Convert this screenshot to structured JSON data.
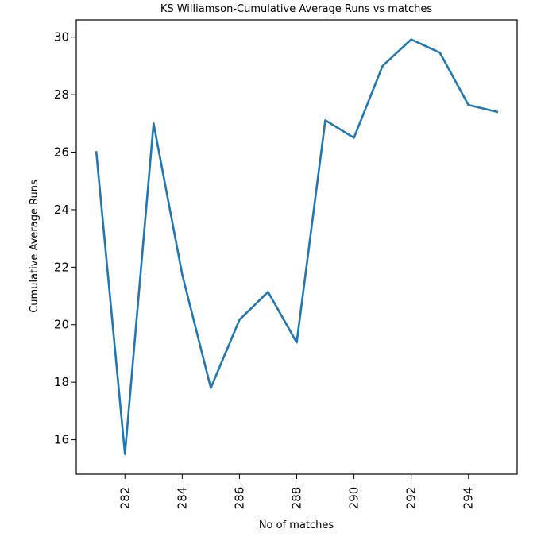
{
  "chart_data": {
    "type": "line",
    "title": "KS Williamson-Cumulative Average Runs vs matches",
    "xlabel": "No of matches",
    "ylabel": "Cumulative Average Runs",
    "xlim": [
      280.3,
      295.7
    ],
    "ylim": [
      14.8,
      30.6
    ],
    "xticks": [
      282,
      284,
      286,
      288,
      290,
      292,
      294
    ],
    "yticks": [
      16,
      18,
      20,
      22,
      24,
      26,
      28,
      30
    ],
    "grid": false,
    "series": [
      {
        "color": "#1f77b4",
        "x": [
          281,
          282,
          283,
          284,
          285,
          286,
          287,
          288,
          289,
          290,
          291,
          292,
          293,
          294,
          295
        ],
        "y": [
          26.0,
          15.5,
          27.0,
          21.75,
          17.8,
          20.17,
          21.14,
          19.38,
          27.11,
          26.5,
          29.0,
          29.92,
          29.46,
          27.64,
          27.4
        ]
      }
    ]
  }
}
